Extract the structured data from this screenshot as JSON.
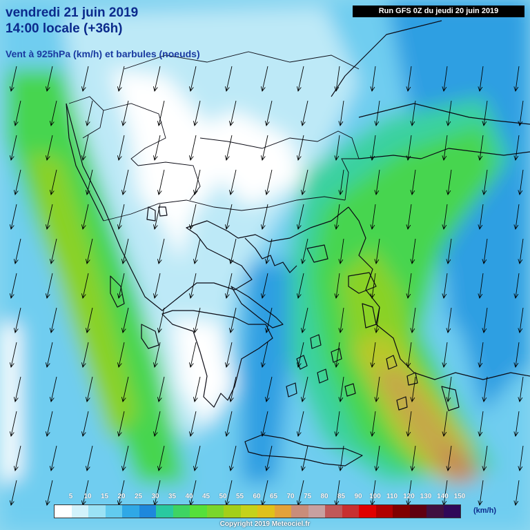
{
  "header": {
    "date_line": "vendredi 21 juin 2019",
    "time_line": "14:00 locale (+36h)",
    "field_line": "Vent à 925hPa (km/h) et barbules (noeuds)",
    "run_line": "Run GFS 0Z du jeudi 20 juin 2019"
  },
  "legend": {
    "labels": [
      "5",
      "10",
      "15",
      "20",
      "25",
      "30",
      "35",
      "40",
      "45",
      "50",
      "55",
      "60",
      "65",
      "70",
      "75",
      "80",
      "85",
      "90",
      "100",
      "110",
      "120",
      "130",
      "140",
      "150"
    ],
    "colors": [
      "#ffffff",
      "#d2f2fb",
      "#9be2f5",
      "#62cbef",
      "#2fa8e6",
      "#1e88dc",
      "#29c9a0",
      "#3ed463",
      "#55e03a",
      "#7ad62c",
      "#a3cf1a",
      "#c5d21a",
      "#e0c11a",
      "#e3a23a",
      "#c98d7a",
      "#c8a0a0",
      "#c05858",
      "#c83030",
      "#e00000",
      "#b00000",
      "#800000",
      "#600010",
      "#401040",
      "#300858"
    ],
    "unit": "(km/h)"
  },
  "footer": {
    "copyright": "Copyright 2019 Meteociel.fr"
  },
  "map": {
    "region": "Greece / Aegean Sea",
    "band_colors": {
      "calm": "#ffffff",
      "light": "#bde9f7",
      "moderate": "#63c7ee",
      "blue": "#2f9fe2",
      "teal": "#3ad1a0",
      "green": "#46d54f",
      "lime": "#8ad228",
      "yellow": "#b9c82a",
      "olive": "#c4a84a",
      "orange": "#c68a55"
    }
  }
}
